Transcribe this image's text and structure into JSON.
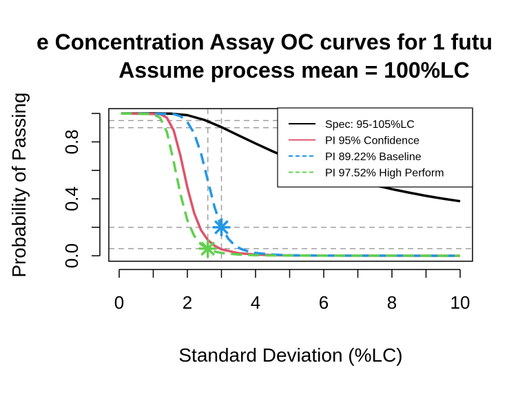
{
  "chart_data": {
    "type": "line",
    "title_line1": "e Concentration Assay OC curves for 1 futu",
    "title_line2": "Assume process mean = 100%LC",
    "xlabel": "Standard Deviation (%LC)",
    "ylabel": "Probability of Passing",
    "xlim": [
      0,
      10
    ],
    "ylim": [
      0,
      1
    ],
    "xticks": [
      "0",
      "2",
      "4",
      "6",
      "8",
      "10"
    ],
    "yticks": [
      "0.0",
      "0.4",
      "0.8"
    ],
    "legend_position": "top-right",
    "series": [
      {
        "name": "Spec: 95-105%LC",
        "color": "#000000",
        "dash": "solid",
        "points": [
          [
            0.05,
            1.0
          ],
          [
            1.0,
            1.0
          ],
          [
            1.5,
            0.999
          ],
          [
            2.0,
            0.988
          ],
          [
            2.5,
            0.954
          ],
          [
            3.0,
            0.904
          ],
          [
            3.5,
            0.846
          ],
          [
            4.0,
            0.789
          ],
          [
            4.5,
            0.734
          ],
          [
            5.0,
            0.683
          ],
          [
            5.5,
            0.635
          ],
          [
            6.0,
            0.595
          ],
          [
            6.5,
            0.557
          ],
          [
            7.0,
            0.524
          ],
          [
            7.5,
            0.495
          ],
          [
            8.0,
            0.468
          ],
          [
            8.5,
            0.444
          ],
          [
            9.0,
            0.421
          ],
          [
            9.5,
            0.401
          ],
          [
            10.0,
            0.383
          ]
        ]
      },
      {
        "name": "PI 95% Confidence",
        "color": "#DF536B",
        "dash": "solid",
        "points": [
          [
            0.05,
            1.0
          ],
          [
            1.2,
            0.995
          ],
          [
            1.4,
            0.97
          ],
          [
            1.6,
            0.88
          ],
          [
            1.8,
            0.7
          ],
          [
            2.0,
            0.48
          ],
          [
            2.2,
            0.3
          ],
          [
            2.4,
            0.18
          ],
          [
            2.6,
            0.11
          ],
          [
            2.8,
            0.07
          ],
          [
            3.0,
            0.045
          ],
          [
            3.5,
            0.018
          ],
          [
            4.0,
            0.008
          ],
          [
            5.0,
            0.002
          ],
          [
            6.0,
            0.001
          ],
          [
            10.0,
            0.0
          ]
        ]
      },
      {
        "name": "PI 89.22% Baseline",
        "color": "#2297E6",
        "dash": "dashed",
        "points": [
          [
            0.05,
            1.0
          ],
          [
            1.6,
            0.995
          ],
          [
            1.8,
            0.98
          ],
          [
            2.0,
            0.94
          ],
          [
            2.2,
            0.86
          ],
          [
            2.4,
            0.72
          ],
          [
            2.6,
            0.53
          ],
          [
            2.8,
            0.34
          ],
          [
            3.0,
            0.2
          ],
          [
            3.2,
            0.12
          ],
          [
            3.4,
            0.07
          ],
          [
            3.6,
            0.045
          ],
          [
            3.8,
            0.03
          ],
          [
            4.0,
            0.02
          ],
          [
            4.5,
            0.008
          ],
          [
            5.0,
            0.004
          ],
          [
            6.0,
            0.001
          ],
          [
            10.0,
            0.0
          ]
        ]
      },
      {
        "name": "PI 97.52% High Perform",
        "color": "#61D04F",
        "dash": "dashed",
        "points": [
          [
            0.05,
            1.0
          ],
          [
            1.0,
            0.995
          ],
          [
            1.2,
            0.97
          ],
          [
            1.4,
            0.87
          ],
          [
            1.6,
            0.66
          ],
          [
            1.8,
            0.43
          ],
          [
            2.0,
            0.25
          ],
          [
            2.2,
            0.14
          ],
          [
            2.4,
            0.08
          ],
          [
            2.6,
            0.05
          ],
          [
            2.8,
            0.03
          ],
          [
            3.0,
            0.02
          ],
          [
            3.5,
            0.008
          ],
          [
            4.0,
            0.004
          ],
          [
            5.0,
            0.001
          ],
          [
            10.0,
            0.0
          ]
        ]
      }
    ],
    "reference_lines": {
      "horizontal": [
        0.05,
        0.2,
        0.9,
        0.95
      ],
      "vertical": [
        2.6,
        3.0
      ],
      "color": "#9E9E9E"
    },
    "markers": [
      {
        "series": "PI 89.22% Baseline",
        "x": 3.0,
        "y": 0.2,
        "color": "#2297E6"
      },
      {
        "series": "PI 97.52% High Perform",
        "x": 2.6,
        "y": 0.05,
        "color": "#61D04F"
      }
    ]
  }
}
